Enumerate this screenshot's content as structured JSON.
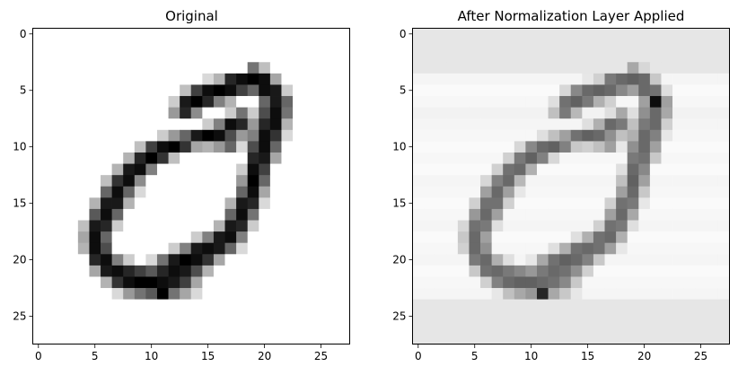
{
  "chart_data": [
    {
      "type": "heatmap",
      "title": "Original",
      "colormap": "gray_r",
      "shape": [
        28,
        28
      ],
      "xlim": [
        -0.5,
        27.5
      ],
      "ylim": [
        27.5,
        -0.5
      ],
      "xticks": [
        0,
        5,
        10,
        15,
        20,
        25
      ],
      "yticks": [
        0,
        5,
        10,
        15,
        20,
        25
      ],
      "xtick_labels": [
        "0",
        "5",
        "10",
        "15",
        "20",
        "25"
      ],
      "ytick_labels": [
        "0",
        "5",
        "10",
        "15",
        "20",
        "25"
      ],
      "value_range": [
        0,
        1
      ],
      "background_value": 0.0,
      "nonzero_pixels": [
        [
          3,
          19,
          0.55
        ],
        [
          3,
          20,
          0.25
        ],
        [
          4,
          15,
          0.15
        ],
        [
          4,
          16,
          0.3
        ],
        [
          4,
          17,
          0.85
        ],
        [
          4,
          18,
          0.95
        ],
        [
          4,
          19,
          1.0
        ],
        [
          4,
          20,
          0.95
        ],
        [
          4,
          21,
          0.35
        ],
        [
          5,
          13,
          0.25
        ],
        [
          5,
          14,
          0.75
        ],
        [
          5,
          15,
          0.95
        ],
        [
          5,
          16,
          1.0
        ],
        [
          5,
          17,
          0.95
        ],
        [
          5,
          18,
          0.75
        ],
        [
          5,
          19,
          0.6
        ],
        [
          5,
          20,
          0.95
        ],
        [
          5,
          21,
          0.9
        ],
        [
          5,
          22,
          0.2
        ],
        [
          6,
          12,
          0.2
        ],
        [
          6,
          13,
          0.9
        ],
        [
          6,
          14,
          1.0
        ],
        [
          6,
          15,
          0.85
        ],
        [
          6,
          16,
          0.5
        ],
        [
          6,
          17,
          0.3
        ],
        [
          6,
          20,
          0.6
        ],
        [
          6,
          21,
          0.9
        ],
        [
          6,
          22,
          0.6
        ],
        [
          7,
          12,
          0.4
        ],
        [
          7,
          13,
          0.85
        ],
        [
          7,
          14,
          0.45
        ],
        [
          7,
          17,
          0.2
        ],
        [
          7,
          18,
          0.55
        ],
        [
          7,
          19,
          0.2
        ],
        [
          7,
          20,
          0.7
        ],
        [
          7,
          21,
          0.95
        ],
        [
          7,
          22,
          0.55
        ],
        [
          8,
          15,
          0.2
        ],
        [
          8,
          16,
          0.5
        ],
        [
          8,
          17,
          0.95
        ],
        [
          8,
          18,
          0.85
        ],
        [
          8,
          19,
          0.4
        ],
        [
          8,
          20,
          0.85
        ],
        [
          8,
          21,
          0.95
        ],
        [
          8,
          22,
          0.3
        ],
        [
          9,
          11,
          0.2
        ],
        [
          9,
          12,
          0.4
        ],
        [
          9,
          13,
          0.6
        ],
        [
          9,
          14,
          0.9
        ],
        [
          9,
          15,
          1.0
        ],
        [
          9,
          16,
          0.95
        ],
        [
          9,
          17,
          0.7
        ],
        [
          9,
          18,
          0.4
        ],
        [
          9,
          19,
          0.5
        ],
        [
          9,
          20,
          0.95
        ],
        [
          9,
          21,
          0.8
        ],
        [
          9,
          22,
          0.15
        ],
        [
          10,
          9,
          0.25
        ],
        [
          10,
          10,
          0.75
        ],
        [
          10,
          11,
          0.95
        ],
        [
          10,
          12,
          1.0
        ],
        [
          10,
          13,
          0.8
        ],
        [
          10,
          14,
          0.35
        ],
        [
          10,
          15,
          0.3
        ],
        [
          10,
          16,
          0.4
        ],
        [
          10,
          17,
          0.6
        ],
        [
          10,
          18,
          0.15
        ],
        [
          10,
          19,
          0.7
        ],
        [
          10,
          20,
          0.95
        ],
        [
          10,
          21,
          0.6
        ],
        [
          11,
          8,
          0.3
        ],
        [
          11,
          9,
          0.85
        ],
        [
          11,
          10,
          1.0
        ],
        [
          11,
          11,
          0.8
        ],
        [
          11,
          12,
          0.25
        ],
        [
          11,
          19,
          0.85
        ],
        [
          11,
          20,
          0.9
        ],
        [
          11,
          21,
          0.35
        ],
        [
          12,
          7,
          0.3
        ],
        [
          12,
          8,
          0.9
        ],
        [
          12,
          9,
          0.95
        ],
        [
          12,
          10,
          0.5
        ],
        [
          12,
          18,
          0.2
        ],
        [
          12,
          19,
          0.95
        ],
        [
          12,
          20,
          0.75
        ],
        [
          13,
          6,
          0.25
        ],
        [
          13,
          7,
          0.8
        ],
        [
          13,
          8,
          0.95
        ],
        [
          13,
          9,
          0.45
        ],
        [
          13,
          18,
          0.4
        ],
        [
          13,
          19,
          1.0
        ],
        [
          13,
          20,
          0.6
        ],
        [
          14,
          6,
          0.6
        ],
        [
          14,
          7,
          0.95
        ],
        [
          14,
          8,
          0.6
        ],
        [
          14,
          9,
          0.15
        ],
        [
          14,
          18,
          0.6
        ],
        [
          14,
          19,
          0.95
        ],
        [
          14,
          20,
          0.35
        ],
        [
          15,
          5,
          0.3
        ],
        [
          15,
          6,
          0.9
        ],
        [
          15,
          7,
          0.9
        ],
        [
          15,
          8,
          0.3
        ],
        [
          15,
          17,
          0.3
        ],
        [
          15,
          18,
          0.9
        ],
        [
          15,
          19,
          0.85
        ],
        [
          15,
          20,
          0.15
        ],
        [
          16,
          5,
          0.65
        ],
        [
          16,
          6,
          0.95
        ],
        [
          16,
          7,
          0.6
        ],
        [
          16,
          17,
          0.6
        ],
        [
          16,
          18,
          0.95
        ],
        [
          16,
          19,
          0.55
        ],
        [
          17,
          4,
          0.25
        ],
        [
          17,
          5,
          0.9
        ],
        [
          17,
          6,
          0.85
        ],
        [
          17,
          7,
          0.2
        ],
        [
          17,
          16,
          0.3
        ],
        [
          17,
          17,
          0.9
        ],
        [
          17,
          18,
          0.85
        ],
        [
          17,
          19,
          0.2
        ],
        [
          18,
          4,
          0.35
        ],
        [
          18,
          5,
          0.95
        ],
        [
          18,
          6,
          0.6
        ],
        [
          18,
          14,
          0.2
        ],
        [
          18,
          15,
          0.5
        ],
        [
          18,
          16,
          0.9
        ],
        [
          18,
          17,
          0.95
        ],
        [
          18,
          18,
          0.5
        ],
        [
          19,
          4,
          0.3
        ],
        [
          19,
          5,
          0.95
        ],
        [
          19,
          6,
          0.7
        ],
        [
          19,
          12,
          0.2
        ],
        [
          19,
          13,
          0.5
        ],
        [
          19,
          14,
          0.9
        ],
        [
          19,
          15,
          0.95
        ],
        [
          19,
          16,
          0.9
        ],
        [
          19,
          17,
          0.6
        ],
        [
          19,
          18,
          0.15
        ],
        [
          20,
          5,
          0.85
        ],
        [
          20,
          6,
          0.95
        ],
        [
          20,
          7,
          0.5
        ],
        [
          20,
          8,
          0.2
        ],
        [
          20,
          10,
          0.15
        ],
        [
          20,
          11,
          0.55
        ],
        [
          20,
          12,
          0.9
        ],
        [
          20,
          13,
          1.0
        ],
        [
          20,
          14,
          0.95
        ],
        [
          20,
          15,
          0.8
        ],
        [
          20,
          16,
          0.35
        ],
        [
          21,
          5,
          0.35
        ],
        [
          21,
          6,
          0.9
        ],
        [
          21,
          7,
          0.95
        ],
        [
          21,
          8,
          0.85
        ],
        [
          21,
          9,
          0.75
        ],
        [
          21,
          10,
          0.65
        ],
        [
          21,
          11,
          0.85
        ],
        [
          21,
          12,
          0.95
        ],
        [
          21,
          13,
          0.9
        ],
        [
          21,
          14,
          0.7
        ],
        [
          21,
          15,
          0.3
        ],
        [
          22,
          6,
          0.3
        ],
        [
          22,
          7,
          0.8
        ],
        [
          22,
          8,
          0.95
        ],
        [
          22,
          9,
          1.0
        ],
        [
          22,
          10,
          1.0
        ],
        [
          22,
          11,
          0.95
        ],
        [
          22,
          12,
          0.9
        ],
        [
          22,
          13,
          0.75
        ],
        [
          22,
          14,
          0.35
        ],
        [
          23,
          7,
          0.15
        ],
        [
          23,
          8,
          0.4
        ],
        [
          23,
          9,
          0.55
        ],
        [
          23,
          10,
          0.65
        ],
        [
          23,
          11,
          1.0
        ],
        [
          23,
          12,
          0.55
        ],
        [
          23,
          13,
          0.35
        ],
        [
          23,
          14,
          0.15
        ]
      ]
    },
    {
      "type": "heatmap",
      "title": "After Normalization Layer Applied",
      "colormap": "gray_r",
      "shape": [
        28,
        28
      ],
      "xlim": [
        -0.5,
        27.5
      ],
      "ylim": [
        27.5,
        -0.5
      ],
      "xticks": [
        0,
        5,
        10,
        15,
        20,
        25
      ],
      "yticks": [
        0,
        5,
        10,
        15,
        20,
        25
      ],
      "xtick_labels": [
        "0",
        "5",
        "10",
        "15",
        "20",
        "25"
      ],
      "ytick_labels": [
        "0",
        "5",
        "10",
        "15",
        "20",
        "25"
      ],
      "value_range": [
        0,
        1
      ],
      "stroke_scale": 0.62,
      "peak_pixels": [
        [
          6,
          21,
          0.95
        ],
        [
          23,
          11,
          0.85
        ]
      ],
      "row_background": [
        0.1,
        0.1,
        0.1,
        0.1,
        0.04,
        0.02,
        0.03,
        0.05,
        0.04,
        0.03,
        0.02,
        0.03,
        0.02,
        0.04,
        0.03,
        0.02,
        0.03,
        0.04,
        0.02,
        0.03,
        0.04,
        0.02,
        0.03,
        0.04,
        0.1,
        0.1,
        0.1,
        0.1
      ]
    }
  ]
}
